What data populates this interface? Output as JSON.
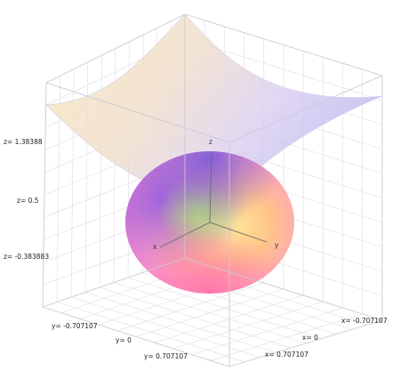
{
  "chart_data": {
    "type": "surface3d",
    "z_ticks": [
      "z= 1.38388",
      "z= 0.5",
      "z= -0.383883"
    ],
    "y_ticks": [
      "y= -0.707107",
      "y= 0",
      "y= 0.707107"
    ],
    "x_ticks": [
      "x= -0.707107",
      "x= 0",
      "x= 0.707107"
    ],
    "axis_labels": {
      "x": "x",
      "y": "y",
      "z": "z"
    },
    "xlim": [
      -0.707107,
      0.707107
    ],
    "ylim": [
      -0.707107,
      0.707107
    ],
    "zlim": [
      -0.383883,
      1.38388
    ],
    "grid": true,
    "surfaces": [
      {
        "kind": "saddle-paraboloid",
        "opacity": "translucent",
        "colors": [
          "#f5ddb0",
          "#cfc6f2",
          "#bcb6f0"
        ]
      },
      {
        "kind": "sphere",
        "colors": [
          "#ffd07a",
          "#f29ae8",
          "#a77ae8",
          "#b9d98a",
          "#ff8db0"
        ]
      }
    ],
    "colors": {
      "box": "#c9c9d6",
      "grid": "#dcdce6"
    }
  }
}
